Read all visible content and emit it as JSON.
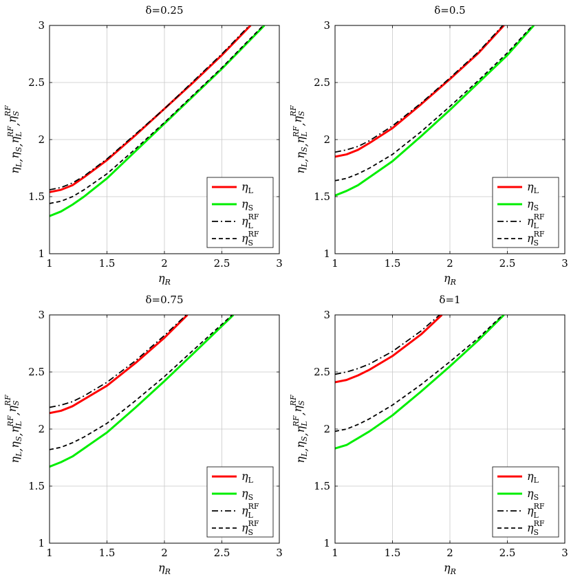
{
  "figure": {
    "x_axis_label": "η",
    "x_axis_label_sub": "R",
    "y_axis_label": "η",
    "y_axis_label_parts": [
      "L",
      "S",
      "L",
      "S"
    ],
    "y_axis_label_sup": "RF"
  },
  "legend": {
    "entries": [
      {
        "symbol": "η",
        "sub": "L",
        "sup": "",
        "color": "#ff0000",
        "style": "solid"
      },
      {
        "symbol": "η",
        "sub": "S",
        "sup": "",
        "color": "#00ee00",
        "style": "solid"
      },
      {
        "symbol": "η",
        "sub": "L",
        "sup": "RF",
        "color": "#000000",
        "style": "dashdot"
      },
      {
        "symbol": "η",
        "sub": "S",
        "sup": "RF",
        "color": "#000000",
        "style": "dashed"
      }
    ],
    "position": "bottom-right"
  },
  "chart_data": [
    {
      "type": "line",
      "title": "δ=0.25",
      "xlim": [
        1,
        3
      ],
      "ylim": [
        1,
        3
      ],
      "xticks": [
        "1",
        "1.5",
        "2",
        "2.5",
        "3"
      ],
      "yticks": [
        "1",
        "1.5",
        "2",
        "2.5",
        "3"
      ],
      "grid": true,
      "series": [
        {
          "name": "η_L",
          "x": [
            1.0,
            1.1,
            1.2,
            1.3,
            1.5,
            1.75,
            2.0,
            2.25,
            2.5,
            2.75
          ],
          "y": [
            1.54,
            1.56,
            1.6,
            1.67,
            1.82,
            2.04,
            2.27,
            2.5,
            2.74,
            3.0
          ]
        },
        {
          "name": "η_S",
          "x": [
            1.0,
            1.1,
            1.2,
            1.3,
            1.5,
            1.75,
            2.0,
            2.25,
            2.5,
            2.87
          ],
          "y": [
            1.33,
            1.37,
            1.43,
            1.5,
            1.66,
            1.9,
            2.14,
            2.38,
            2.62,
            3.0
          ]
        },
        {
          "name": "η_L^RF",
          "x": [
            1.0,
            1.1,
            1.2,
            1.3,
            1.5,
            1.75,
            2.0,
            2.25,
            2.5,
            2.74
          ],
          "y": [
            1.56,
            1.58,
            1.62,
            1.68,
            1.83,
            2.05,
            2.27,
            2.51,
            2.75,
            3.0
          ]
        },
        {
          "name": "η_S^RF",
          "x": [
            1.0,
            1.1,
            1.2,
            1.3,
            1.5,
            1.75,
            2.0,
            2.25,
            2.5,
            2.86
          ],
          "y": [
            1.44,
            1.46,
            1.5,
            1.56,
            1.7,
            1.92,
            2.15,
            2.39,
            2.63,
            3.0
          ]
        }
      ]
    },
    {
      "type": "line",
      "title": "δ=0.5",
      "xlim": [
        1,
        3
      ],
      "ylim": [
        1,
        3
      ],
      "xticks": [
        "1",
        "1.5",
        "2",
        "2.5",
        "3"
      ],
      "yticks": [
        "1",
        "1.5",
        "2",
        "2.5",
        "3"
      ],
      "grid": true,
      "series": [
        {
          "name": "η_L",
          "x": [
            1.0,
            1.1,
            1.2,
            1.3,
            1.5,
            1.75,
            2.0,
            2.25,
            2.47
          ],
          "y": [
            1.85,
            1.87,
            1.91,
            1.97,
            2.1,
            2.31,
            2.53,
            2.76,
            3.0
          ]
        },
        {
          "name": "η_S",
          "x": [
            1.0,
            1.1,
            1.2,
            1.3,
            1.5,
            1.75,
            2.0,
            2.25,
            2.5,
            2.73
          ],
          "y": [
            1.51,
            1.55,
            1.6,
            1.67,
            1.81,
            2.03,
            2.26,
            2.5,
            2.74,
            3.0
          ]
        },
        {
          "name": "η_L^RF",
          "x": [
            1.0,
            1.1,
            1.2,
            1.3,
            1.5,
            1.75,
            2.0,
            2.25,
            2.46
          ],
          "y": [
            1.89,
            1.91,
            1.94,
            1.99,
            2.12,
            2.32,
            2.54,
            2.77,
            3.0
          ]
        },
        {
          "name": "η_S^RF",
          "x": [
            1.0,
            1.1,
            1.2,
            1.3,
            1.5,
            1.75,
            2.0,
            2.25,
            2.5,
            2.72
          ],
          "y": [
            1.64,
            1.66,
            1.7,
            1.75,
            1.87,
            2.07,
            2.29,
            2.52,
            2.76,
            3.0
          ]
        }
      ]
    },
    {
      "type": "line",
      "title": "δ=0.75",
      "xlim": [
        1,
        3
      ],
      "ylim": [
        1,
        3
      ],
      "xticks": [
        "1",
        "1.5",
        "2",
        "2.5",
        "3"
      ],
      "yticks": [
        "1",
        "1.5",
        "2",
        "2.5",
        "3"
      ],
      "grid": true,
      "series": [
        {
          "name": "η_L",
          "x": [
            1.0,
            1.1,
            1.2,
            1.3,
            1.5,
            1.75,
            2.0,
            2.2
          ],
          "y": [
            2.14,
            2.16,
            2.2,
            2.26,
            2.38,
            2.58,
            2.8,
            3.0
          ]
        },
        {
          "name": "η_S",
          "x": [
            1.0,
            1.1,
            1.2,
            1.3,
            1.5,
            1.75,
            2.0,
            2.25,
            2.6
          ],
          "y": [
            1.67,
            1.71,
            1.76,
            1.83,
            1.97,
            2.19,
            2.42,
            2.66,
            3.0
          ]
        },
        {
          "name": "η_L^RF",
          "x": [
            1.0,
            1.1,
            1.2,
            1.3,
            1.5,
            1.75,
            2.0,
            2.19
          ],
          "y": [
            2.19,
            2.21,
            2.24,
            2.29,
            2.41,
            2.6,
            2.82,
            3.0
          ]
        },
        {
          "name": "η_S^RF",
          "x": [
            1.0,
            1.1,
            1.2,
            1.3,
            1.5,
            1.75,
            2.0,
            2.25,
            2.59
          ],
          "y": [
            1.82,
            1.84,
            1.88,
            1.93,
            2.05,
            2.25,
            2.46,
            2.69,
            3.0
          ]
        }
      ]
    },
    {
      "type": "line",
      "title": "δ=1",
      "xlim": [
        1,
        3
      ],
      "ylim": [
        1,
        3
      ],
      "xticks": [
        "1",
        "1.5",
        "2",
        "2.5",
        "3"
      ],
      "yticks": [
        "1",
        "1.5",
        "2",
        "2.5",
        "3"
      ],
      "grid": true,
      "series": [
        {
          "name": "η_L",
          "x": [
            1.0,
            1.1,
            1.2,
            1.3,
            1.5,
            1.75,
            1.93
          ],
          "y": [
            2.41,
            2.43,
            2.47,
            2.52,
            2.64,
            2.83,
            3.0
          ]
        },
        {
          "name": "η_S",
          "x": [
            1.0,
            1.1,
            1.2,
            1.3,
            1.5,
            1.75,
            2.0,
            2.25,
            2.47
          ],
          "y": [
            1.83,
            1.86,
            1.92,
            1.98,
            2.12,
            2.33,
            2.55,
            2.78,
            3.0
          ]
        },
        {
          "name": "η_L^RF",
          "x": [
            1.0,
            1.1,
            1.2,
            1.3,
            1.5,
            1.75,
            1.91
          ],
          "y": [
            2.48,
            2.5,
            2.53,
            2.57,
            2.68,
            2.86,
            3.0
          ]
        },
        {
          "name": "η_S^RF",
          "x": [
            1.0,
            1.1,
            1.2,
            1.3,
            1.5,
            1.75,
            2.0,
            2.25,
            2.46
          ],
          "y": [
            1.98,
            2.0,
            2.04,
            2.09,
            2.21,
            2.39,
            2.59,
            2.8,
            3.0
          ]
        }
      ]
    }
  ]
}
